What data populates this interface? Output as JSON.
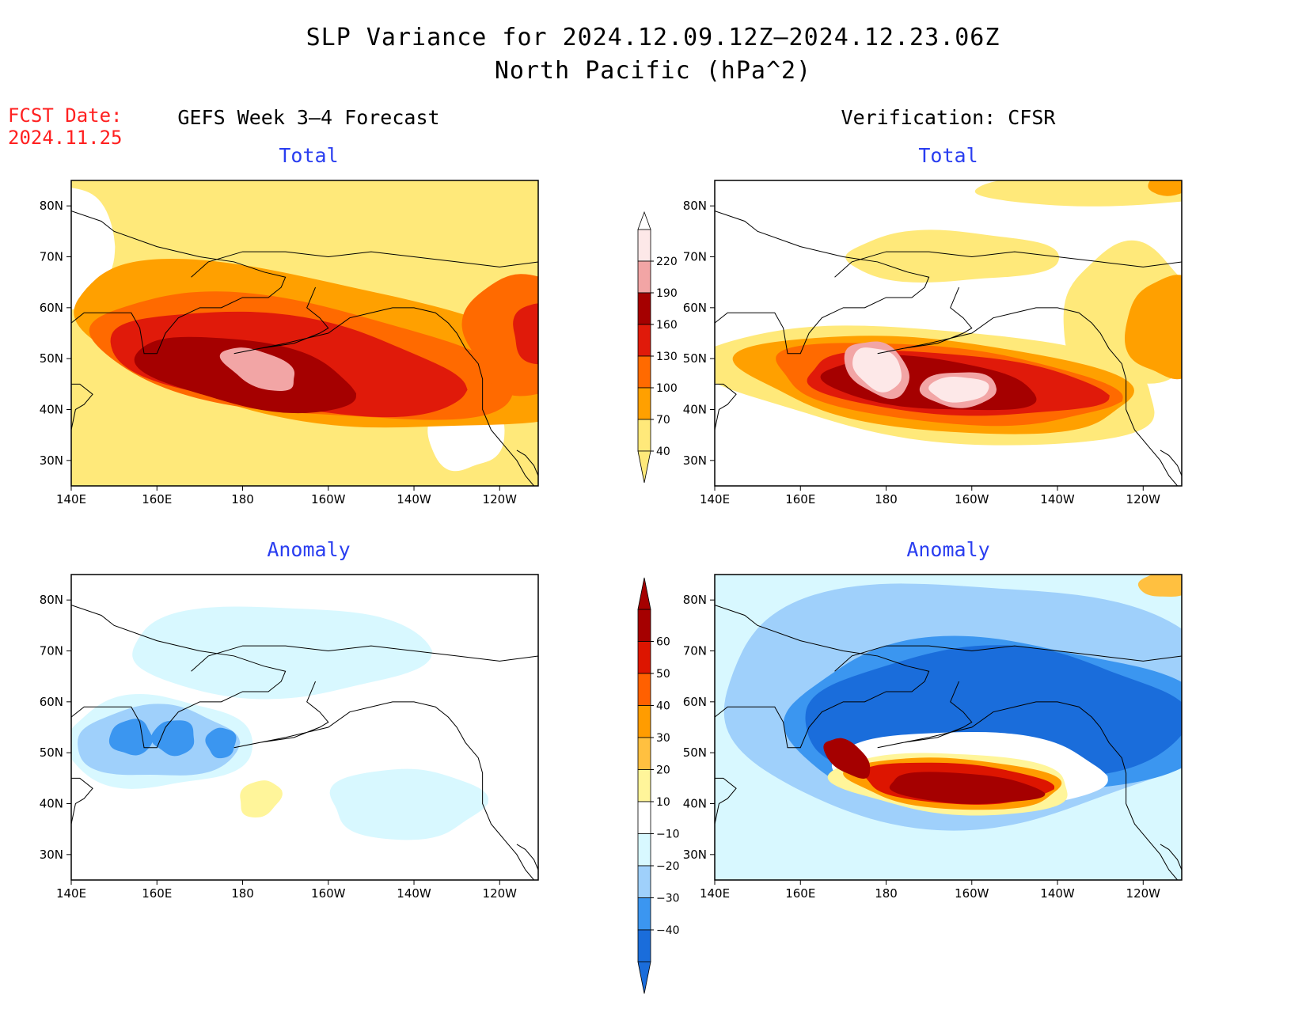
{
  "title": {
    "line1": "SLP Variance for 2024.12.09.12Z–2024.12.23.06Z",
    "line2": "North Pacific (hPa^2)"
  },
  "fcst_date": {
    "label": "FCST Date:",
    "value": "2024.11.25"
  },
  "columns": {
    "left": "GEFS Week 3–4 Forecast",
    "right": "Verification: CFSR"
  },
  "panel_titles": {
    "total": "Total",
    "anomaly": "Anomaly"
  },
  "axes": {
    "lat_labels": [
      "80N",
      "70N",
      "60N",
      "50N",
      "40N",
      "30N"
    ],
    "lon_labels": [
      "140E",
      "160E",
      "180",
      "160W",
      "140W",
      "120W"
    ]
  },
  "colors": {
    "total": [
      "#ffe97a",
      "#ffa000",
      "#ff6a00",
      "#e01a0a",
      "#a50000",
      "#f2a5a5",
      "#fde8e8"
    ],
    "anomaly": [
      "#1a6ddb",
      "#3b96f0",
      "#9fd0fb",
      "#d8f8ff",
      "#ffffff",
      "#fff59a",
      "#ffc040",
      "#ff9c00",
      "#ff6000",
      "#dd1500",
      "#a50000"
    ]
  },
  "colorbar_total": {
    "ticks": [
      "220",
      "190",
      "160",
      "130",
      "100",
      "70",
      "40"
    ]
  },
  "colorbar_anomaly": {
    "ticks": [
      "60",
      "50",
      "40",
      "30",
      "20",
      "10",
      "−10",
      "−20",
      "−30",
      "−40"
    ]
  }
}
